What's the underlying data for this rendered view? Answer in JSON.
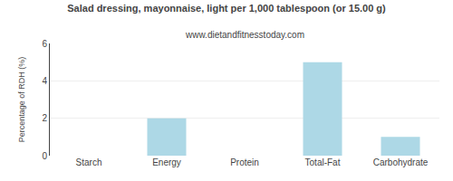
{
  "chart_data": {
    "type": "bar",
    "title": "Salad dressing, mayonnaise, light per 1,000 tablespoon (or 15.00 g)",
    "subtitle": "www.dietandfitnesstoday.com",
    "categories": [
      "Starch",
      "Energy",
      "Protein",
      "Total-Fat",
      "Carbohydrate"
    ],
    "values": [
      0,
      2.0,
      0,
      5.0,
      1.0
    ],
    "color": "#add8e6",
    "ylabel": "Percentage of RDH (%)",
    "ylim": [
      0,
      6
    ],
    "yticks": [
      0,
      2,
      4,
      6
    ],
    "grid": true
  }
}
